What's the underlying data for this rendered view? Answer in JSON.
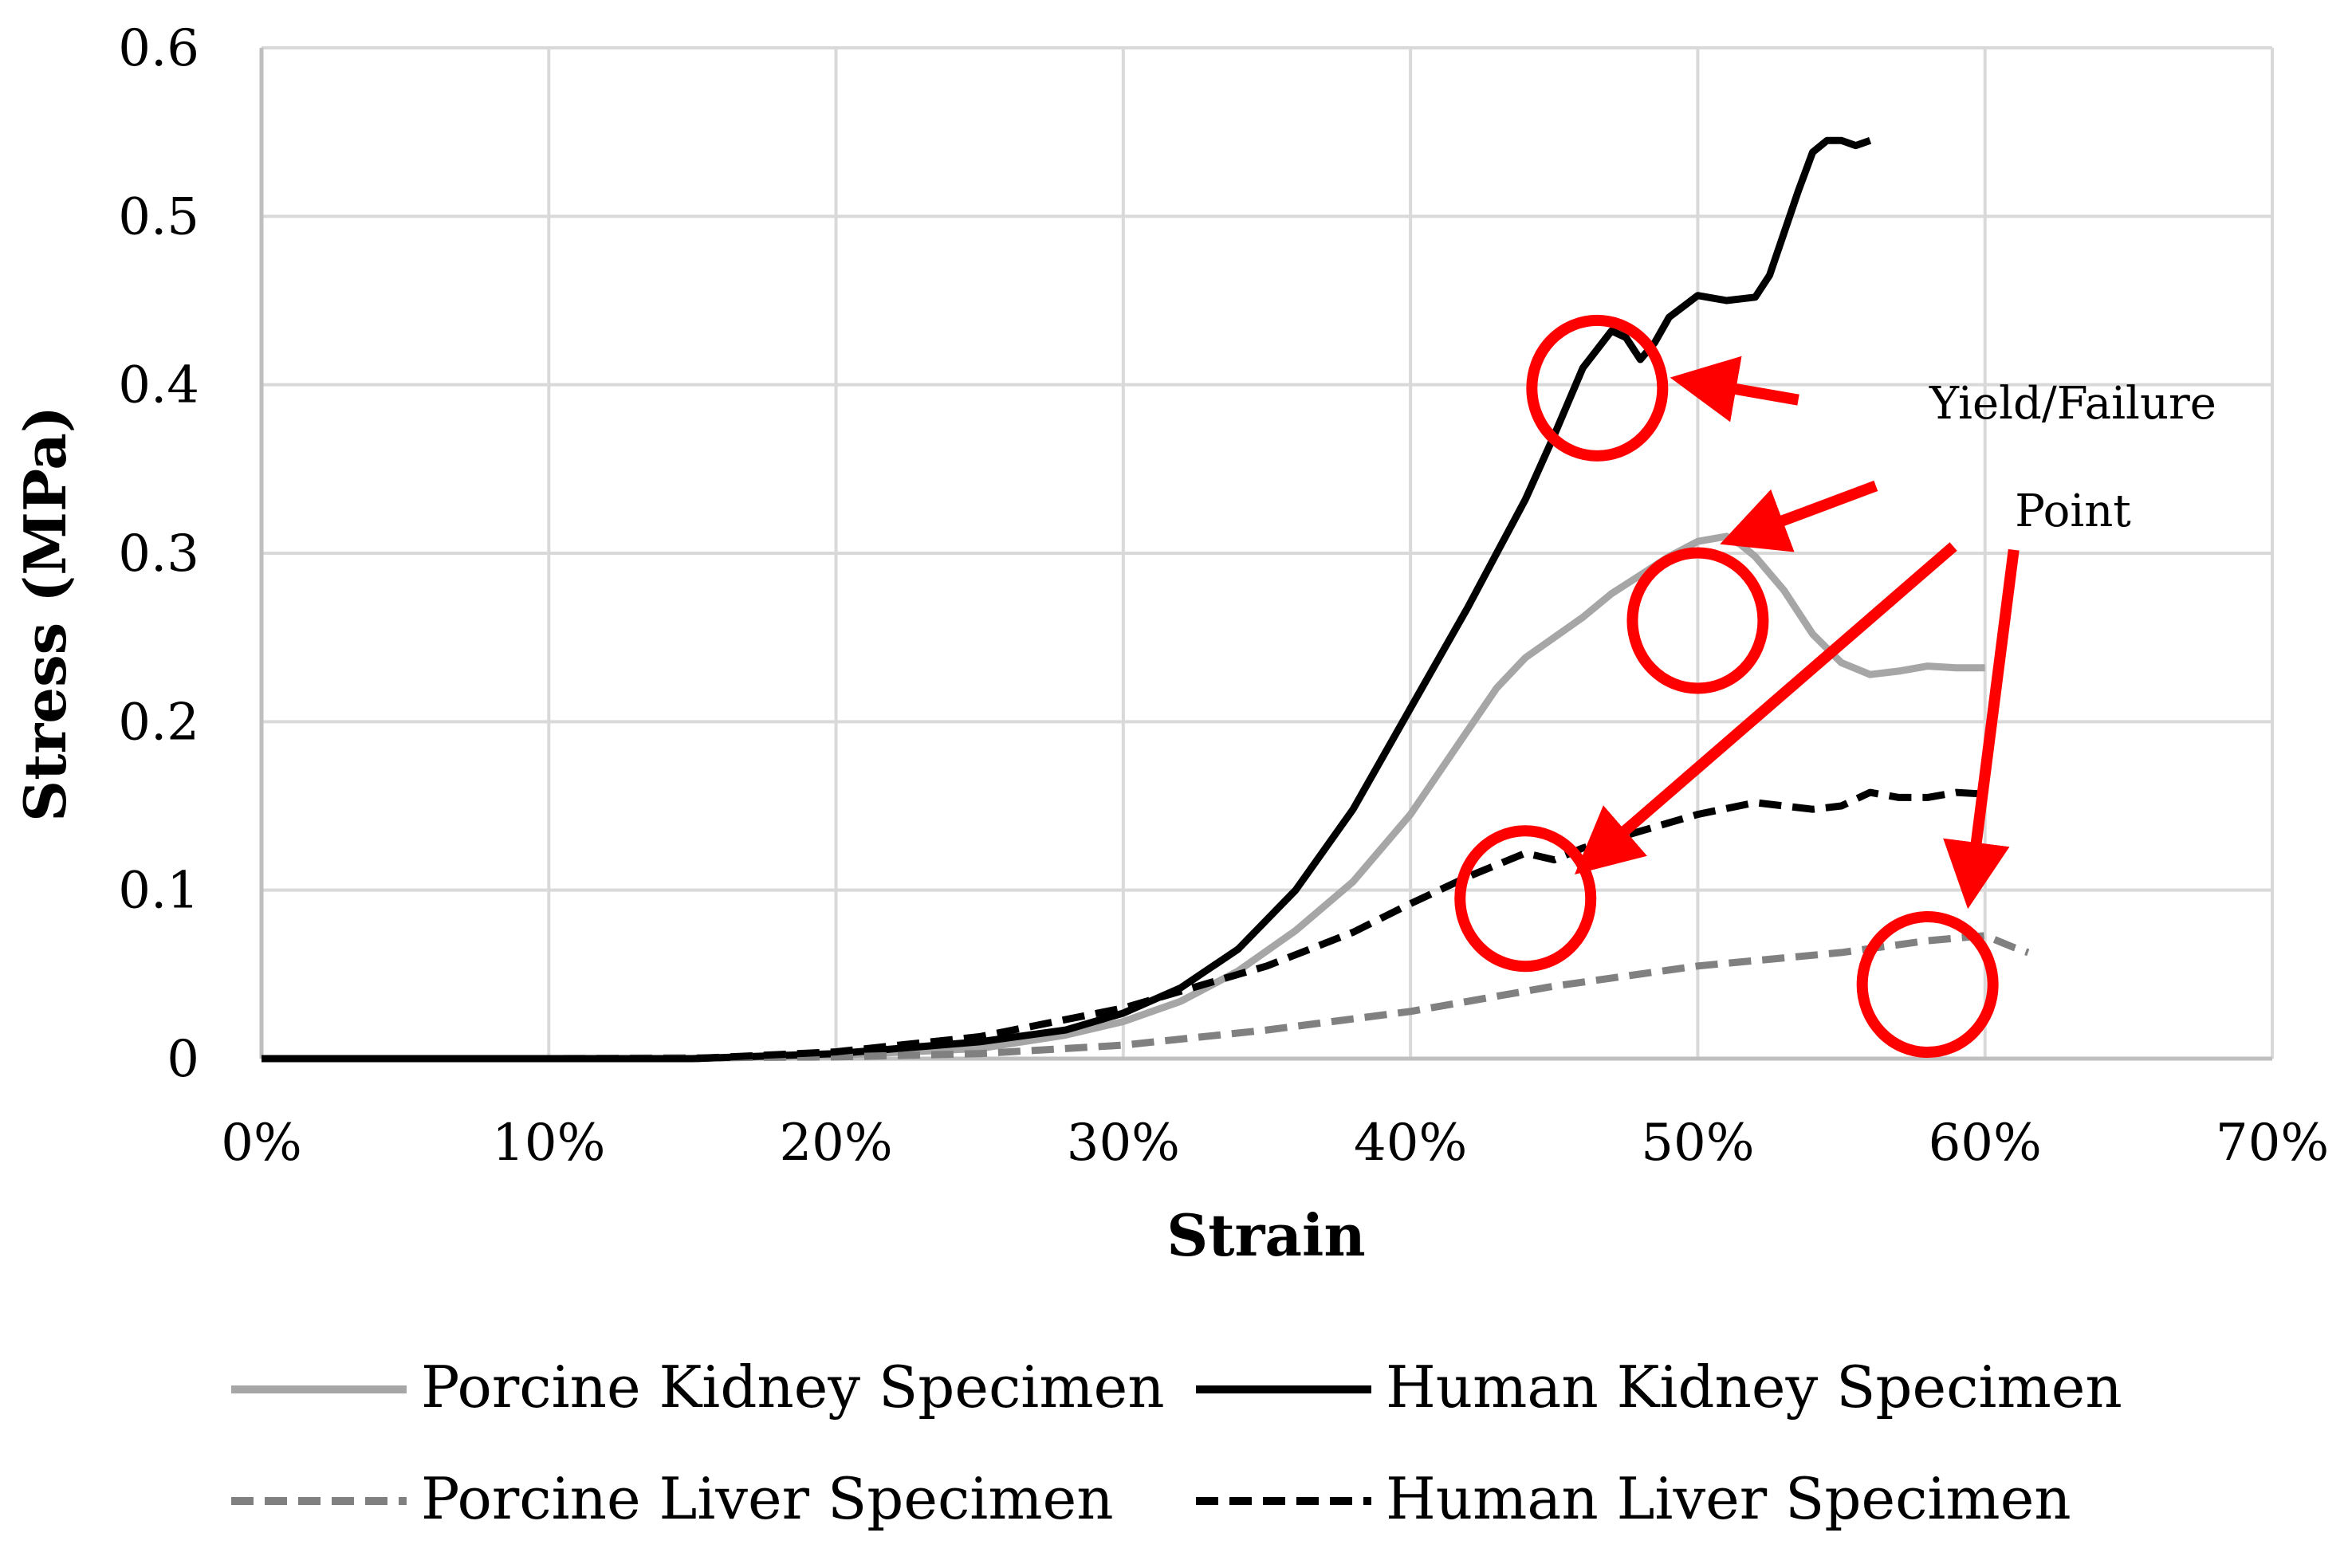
{
  "chart_data": {
    "type": "line",
    "title": "",
    "xlabel": "Strain",
    "ylabel": "Stress (MPa)",
    "xlim": [
      0,
      0.7
    ],
    "ylim": [
      0,
      0.6
    ],
    "x_ticks": [
      "0%",
      "10%",
      "20%",
      "30%",
      "40%",
      "50%",
      "60%",
      "70%"
    ],
    "y_ticks": [
      "0",
      "0.1",
      "0.2",
      "0.3",
      "0.4",
      "0.5",
      "0.6"
    ],
    "grid": true,
    "legend_position": "bottom",
    "annotations": [
      "Yield/Failure",
      "Point"
    ],
    "annotation_color": "#ff0000",
    "series": [
      {
        "name": "Porcine Kidney Specimen",
        "color": "#a6a6a6",
        "dash": "solid",
        "points": [
          [
            0,
            0
          ],
          [
            0.1,
            0
          ],
          [
            0.15,
            0
          ],
          [
            0.2,
            0.002
          ],
          [
            0.25,
            0.006
          ],
          [
            0.28,
            0.014
          ],
          [
            0.3,
            0.022
          ],
          [
            0.32,
            0.034
          ],
          [
            0.34,
            0.052
          ],
          [
            0.36,
            0.076
          ],
          [
            0.38,
            0.105
          ],
          [
            0.4,
            0.145
          ],
          [
            0.42,
            0.195
          ],
          [
            0.43,
            0.22
          ],
          [
            0.44,
            0.238
          ],
          [
            0.45,
            0.25
          ],
          [
            0.46,
            0.262
          ],
          [
            0.47,
            0.276
          ],
          [
            0.48,
            0.287
          ],
          [
            0.49,
            0.298
          ],
          [
            0.5,
            0.307
          ],
          [
            0.51,
            0.31
          ],
          [
            0.515,
            0.305
          ],
          [
            0.52,
            0.298
          ],
          [
            0.53,
            0.278
          ],
          [
            0.54,
            0.252
          ],
          [
            0.55,
            0.235
          ],
          [
            0.56,
            0.228
          ],
          [
            0.57,
            0.23
          ],
          [
            0.58,
            0.233
          ],
          [
            0.59,
            0.232
          ],
          [
            0.6,
            0.232
          ]
        ]
      },
      {
        "name": "Human Kidney Specimen",
        "color": "#000000",
        "dash": "solid",
        "points": [
          [
            0,
            0
          ],
          [
            0.1,
            0
          ],
          [
            0.15,
            0
          ],
          [
            0.2,
            0.003
          ],
          [
            0.25,
            0.01
          ],
          [
            0.28,
            0.017
          ],
          [
            0.3,
            0.027
          ],
          [
            0.32,
            0.042
          ],
          [
            0.34,
            0.065
          ],
          [
            0.36,
            0.1
          ],
          [
            0.38,
            0.148
          ],
          [
            0.4,
            0.208
          ],
          [
            0.42,
            0.268
          ],
          [
            0.43,
            0.3
          ],
          [
            0.44,
            0.332
          ],
          [
            0.45,
            0.37
          ],
          [
            0.46,
            0.41
          ],
          [
            0.47,
            0.432
          ],
          [
            0.475,
            0.428
          ],
          [
            0.48,
            0.415
          ],
          [
            0.485,
            0.425
          ],
          [
            0.49,
            0.44
          ],
          [
            0.5,
            0.453
          ],
          [
            0.51,
            0.45
          ],
          [
            0.52,
            0.452
          ],
          [
            0.525,
            0.465
          ],
          [
            0.53,
            0.49
          ],
          [
            0.535,
            0.515
          ],
          [
            0.54,
            0.538
          ],
          [
            0.545,
            0.545
          ],
          [
            0.55,
            0.545
          ],
          [
            0.555,
            0.542
          ],
          [
            0.56,
            0.545
          ]
        ]
      },
      {
        "name": "Porcine Liver Specimen",
        "color": "#808080",
        "dash": "dashed",
        "points": [
          [
            0,
            0
          ],
          [
            0.1,
            0
          ],
          [
            0.2,
            0.001
          ],
          [
            0.25,
            0.003
          ],
          [
            0.3,
            0.008
          ],
          [
            0.35,
            0.017
          ],
          [
            0.4,
            0.028
          ],
          [
            0.45,
            0.043
          ],
          [
            0.5,
            0.055
          ],
          [
            0.55,
            0.063
          ],
          [
            0.58,
            0.07
          ],
          [
            0.6,
            0.073
          ],
          [
            0.61,
            0.066
          ],
          [
            0.615,
            0.063
          ]
        ]
      },
      {
        "name": "Human Liver Specimen",
        "color": "#000000",
        "dash": "dashed",
        "points": [
          [
            0,
            0
          ],
          [
            0.1,
            0
          ],
          [
            0.15,
            0
          ],
          [
            0.2,
            0.004
          ],
          [
            0.25,
            0.013
          ],
          [
            0.3,
            0.03
          ],
          [
            0.33,
            0.045
          ],
          [
            0.35,
            0.055
          ],
          [
            0.38,
            0.075
          ],
          [
            0.4,
            0.092
          ],
          [
            0.42,
            0.108
          ],
          [
            0.43,
            0.115
          ],
          [
            0.44,
            0.122
          ],
          [
            0.45,
            0.118
          ],
          [
            0.46,
            0.125
          ],
          [
            0.48,
            0.135
          ],
          [
            0.5,
            0.145
          ],
          [
            0.52,
            0.152
          ],
          [
            0.54,
            0.148
          ],
          [
            0.55,
            0.15
          ],
          [
            0.56,
            0.158
          ],
          [
            0.57,
            0.155
          ],
          [
            0.58,
            0.155
          ],
          [
            0.59,
            0.158
          ],
          [
            0.6,
            0.157
          ]
        ]
      }
    ]
  }
}
